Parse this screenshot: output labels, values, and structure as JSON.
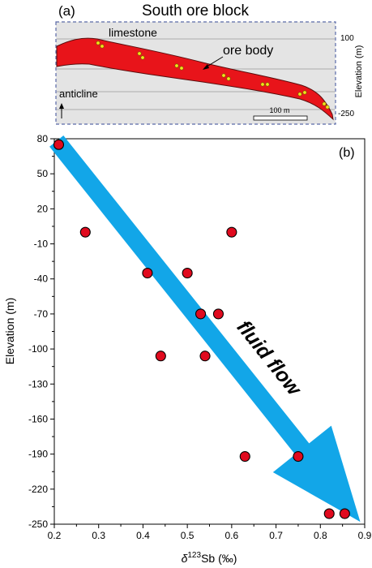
{
  "panel_a": {
    "label": "(a)",
    "title": "South ore block",
    "labels": {
      "limestone": "limestone",
      "ore_body": "ore body",
      "anticline": "anticline",
      "scale_bar": "100 m"
    },
    "elevation_axis": {
      "label": "Elevation (m)",
      "ticks": [
        "100",
        "-250"
      ]
    },
    "colors": {
      "ore_body": "#e8141a",
      "background": "#e3e3e3",
      "frame": "#5a6aa8",
      "sample": "#f2e21a"
    }
  },
  "chart_data": {
    "type": "scatter",
    "panel_label": "(b)",
    "xlabel": "δ¹²³Sb (‰)",
    "ylabel": "Elevation (m)",
    "xlim": [
      0.2,
      0.9
    ],
    "ylim": [
      -250,
      80
    ],
    "x_ticks": [
      0.2,
      0.3,
      0.4,
      0.5,
      0.6,
      0.7,
      0.8,
      0.9
    ],
    "y_ticks": [
      80,
      50,
      20,
      -10,
      -40,
      -70,
      -100,
      -130,
      -160,
      -190,
      -220,
      -250
    ],
    "x_tick_labels": [
      "0.2",
      "0.3",
      "0.4",
      "0.5",
      "0.6",
      "0.7",
      "0.8",
      "0.9"
    ],
    "y_tick_labels": [
      "80",
      "50",
      "20",
      "-10",
      "-40",
      "-70",
      "-100",
      "-130",
      "-160",
      "-190",
      "-220",
      "-250"
    ],
    "grid": false,
    "points": [
      {
        "x": 0.21,
        "y": 75
      },
      {
        "x": 0.27,
        "y": 0
      },
      {
        "x": 0.41,
        "y": -35
      },
      {
        "x": 0.5,
        "y": -35
      },
      {
        "x": 0.53,
        "y": -70
      },
      {
        "x": 0.57,
        "y": -70
      },
      {
        "x": 0.6,
        "y": 0
      },
      {
        "x": 0.44,
        "y": -106
      },
      {
        "x": 0.54,
        "y": -106
      },
      {
        "x": 0.63,
        "y": -192
      },
      {
        "x": 0.75,
        "y": -192
      },
      {
        "x": 0.82,
        "y": -241
      },
      {
        "x": 0.855,
        "y": -241
      }
    ],
    "annotation": {
      "text": "fluid flow",
      "from": {
        "x": 0.205,
        "y": 78
      },
      "to": {
        "x": 0.89,
        "y": -248
      }
    },
    "colors": {
      "point_fill": "#e00a1e",
      "arrow": "#12a6e8"
    }
  }
}
